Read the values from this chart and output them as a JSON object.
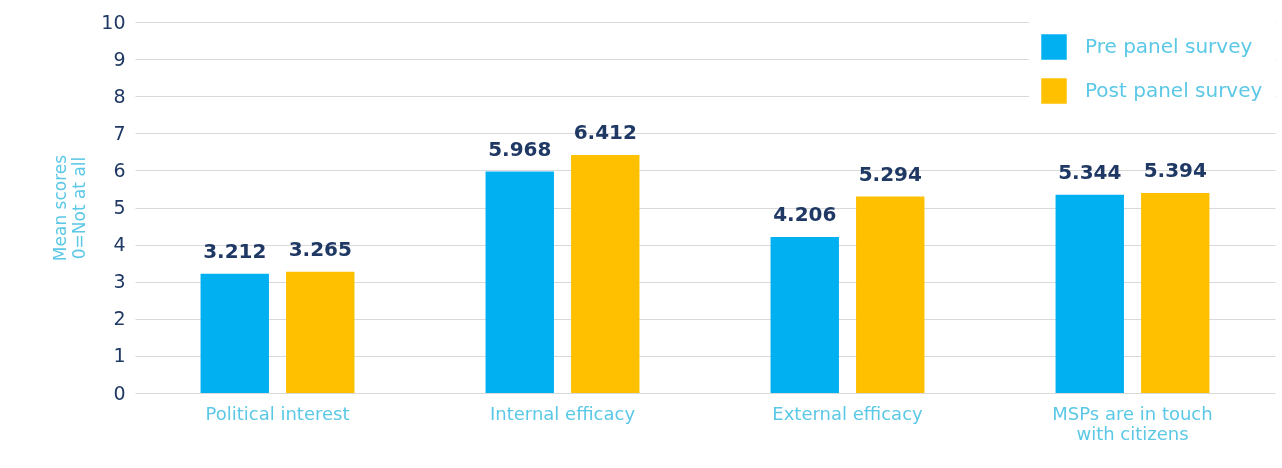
{
  "chart_data": {
    "type": "bar",
    "ylabel": "Mean scores\n0=Not at all",
    "categories": [
      "Political interest",
      "Internal efficacy",
      "External efficacy",
      "MSPs are in touch with citizens"
    ],
    "series": [
      {
        "name": "Pre panel survey",
        "color": "#00b0f0",
        "values": [
          3.212,
          5.968,
          4.206,
          5.344
        ]
      },
      {
        "name": "Post panel survey",
        "color": "#ffc000",
        "values": [
          3.265,
          6.412,
          5.294,
          5.394
        ]
      }
    ],
    "ylim": [
      0,
      10
    ],
    "yticks": [
      0,
      1,
      2,
      3,
      4,
      5,
      6,
      7,
      8,
      9,
      10
    ],
    "grid": "y",
    "legend": "top right",
    "data_labels": true
  }
}
